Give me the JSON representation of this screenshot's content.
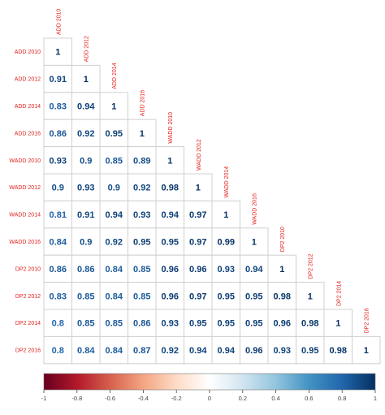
{
  "chart_data": {
    "type": "heatmap",
    "title": "",
    "labels": [
      "ADD 2010",
      "ADD 2012",
      "ADD 2014",
      "ADD 2016",
      "WADD 2010",
      "WADD 2012",
      "WADD 2014",
      "WADD 2016",
      "DP2 2010",
      "DP2 2012",
      "DP2 2014",
      "DP2 2016"
    ],
    "values": [
      [
        1
      ],
      [
        0.91,
        1
      ],
      [
        0.83,
        0.94,
        1
      ],
      [
        0.86,
        0.92,
        0.95,
        1
      ],
      [
        0.93,
        0.9,
        0.85,
        0.89,
        1
      ],
      [
        0.9,
        0.93,
        0.9,
        0.92,
        0.98,
        1
      ],
      [
        0.81,
        0.91,
        0.94,
        0.93,
        0.94,
        0.97,
        1
      ],
      [
        0.84,
        0.9,
        0.92,
        0.95,
        0.95,
        0.97,
        0.99,
        1
      ],
      [
        0.86,
        0.86,
        0.84,
        0.85,
        0.96,
        0.96,
        0.93,
        0.94,
        1
      ],
      [
        0.83,
        0.85,
        0.84,
        0.85,
        0.96,
        0.97,
        0.95,
        0.95,
        0.98,
        1
      ],
      [
        0.8,
        0.85,
        0.85,
        0.86,
        0.93,
        0.95,
        0.95,
        0.95,
        0.96,
        0.98,
        1
      ],
      [
        0.8,
        0.84,
        0.84,
        0.87,
        0.92,
        0.94,
        0.94,
        0.96,
        0.93,
        0.95,
        0.98,
        1
      ]
    ],
    "triangle": "lower",
    "colorbar": {
      "range": [
        -1,
        1
      ],
      "ticks": [
        "-1",
        "-0.8",
        "-0.6",
        "-0.4",
        "-0.2",
        "0",
        "0.2",
        "0.4",
        "0.6",
        "0.8",
        "1"
      ],
      "colors": [
        "#67001f",
        "#b2182b",
        "#d6604d",
        "#f4a582",
        "#fddbc7",
        "#ffffff",
        "#d1e5f0",
        "#92c5de",
        "#4393c3",
        "#2166ac",
        "#053061"
      ],
      "placement": "bottom"
    },
    "label_color": "#e2211c"
  }
}
